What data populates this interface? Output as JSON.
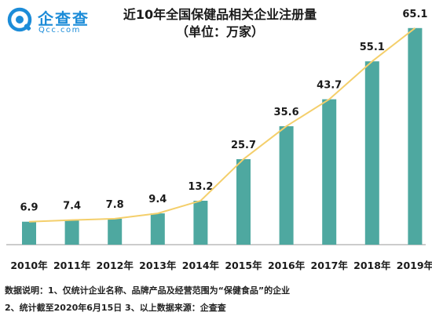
{
  "logo": {
    "name_cn": "企查查",
    "name_en": "Qcc.com"
  },
  "colors": {
    "bar": "#4ea8a0",
    "line": "#f4cf6b",
    "logo": "#1c8cd8",
    "axis": "#9a9a9a"
  },
  "notes": {
    "line1": "数据说明：1、仅统计企业名称、品牌产品及经营范围为“保健食品”的企业",
    "line2": "2、统计截至2020年6月15日    3、以上数据来源：企查查"
  },
  "chart_data": {
    "type": "bar",
    "title": "近10年全国保健品相关企业注册量",
    "subtitle": "（单位：万家）",
    "categories": [
      "2010年",
      "2011年",
      "2012年",
      "2013年",
      "2014年",
      "2015年",
      "2016年",
      "2017年",
      "2018年",
      "2019年"
    ],
    "values": [
      6.9,
      7.4,
      7.8,
      9.4,
      13.2,
      25.7,
      35.6,
      43.7,
      55.1,
      65.1
    ],
    "data_labels": [
      "6.9",
      "7.4",
      "7.8",
      "9.4",
      "13.2",
      "25.7",
      "35.6",
      "43.7",
      "55.1",
      "65.1"
    ],
    "overlay_line": true,
    "xlabel": "",
    "ylabel": "",
    "ylim": [
      0,
      70
    ],
    "grid": false,
    "legend": "none"
  }
}
